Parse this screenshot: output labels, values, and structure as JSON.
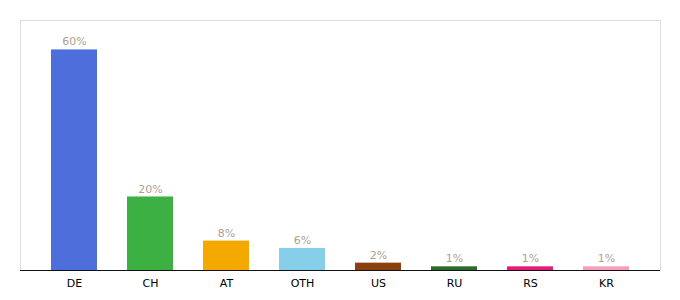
{
  "chart_data": {
    "type": "bar",
    "categories": [
      "DE",
      "CH",
      "AT",
      "OTH",
      "US",
      "RU",
      "RS",
      "KR"
    ],
    "values": [
      60,
      20,
      8,
      6,
      2,
      1,
      1,
      1
    ],
    "value_labels": [
      "60%",
      "20%",
      "8%",
      "6%",
      "2%",
      "1%",
      "1%",
      "1%"
    ],
    "colors": [
      "#4d6edb",
      "#3cb043",
      "#f5a800",
      "#87ceeb",
      "#8b4010",
      "#2a6b2a",
      "#e8197a",
      "#f5a0b8"
    ],
    "ylim": [
      0,
      68
    ],
    "data_labels": true,
    "tick_labels": "x",
    "grid": false
  }
}
